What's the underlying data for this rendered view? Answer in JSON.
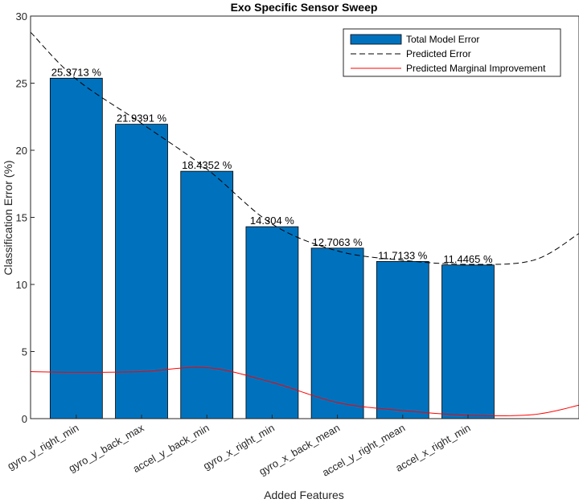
{
  "chart_data": {
    "type": "bar",
    "title": "Exo Specific Sensor Sweep",
    "xlabel": "Added Features",
    "ylabel": "Classification Error (%)",
    "ylim": [
      0,
      30
    ],
    "yticks": [
      0,
      5,
      10,
      15,
      20,
      25,
      30
    ],
    "categories": [
      "gyro_y_right_min",
      "gyro_y_back_max",
      "accel_y_back_min",
      "gyro_x_right_min",
      "gyro_x_back_mean",
      "accel_y_right_mean",
      "accel_x_right_min"
    ],
    "values": [
      25.3713,
      21.9391,
      18.4352,
      14.304,
      12.7063,
      11.7133,
      11.4465
    ],
    "data_labels": [
      "25.3713 %",
      "21.9391 %",
      "18.4352 %",
      "14.304 %",
      "12.7063 %",
      "11.7133 %",
      "11.4465 %"
    ],
    "bar_color": "#0072BD",
    "legend": {
      "placement": "top-right",
      "entries": [
        "Total Model Error",
        "Predicted Error",
        "Predicted Marginal Improvement"
      ]
    },
    "lines": [
      {
        "name": "Predicted Error",
        "style": "dashed",
        "color": "#000000",
        "x": [
          0.3,
          1,
          2,
          3,
          4,
          5,
          6,
          7,
          8,
          8.7
        ],
        "y": [
          28.8,
          25.3,
          22.0,
          18.6,
          14.5,
          12.5,
          11.8,
          11.5,
          11.8,
          13.8
        ]
      },
      {
        "name": "Predicted Marginal Improvement",
        "style": "solid",
        "color": "#FF0000",
        "x": [
          0.3,
          1,
          2,
          3,
          4,
          5,
          6,
          7,
          8,
          8.7
        ],
        "y": [
          3.5,
          3.45,
          3.5,
          3.8,
          2.7,
          1.2,
          0.6,
          0.25,
          0.3,
          1.0
        ]
      }
    ]
  }
}
